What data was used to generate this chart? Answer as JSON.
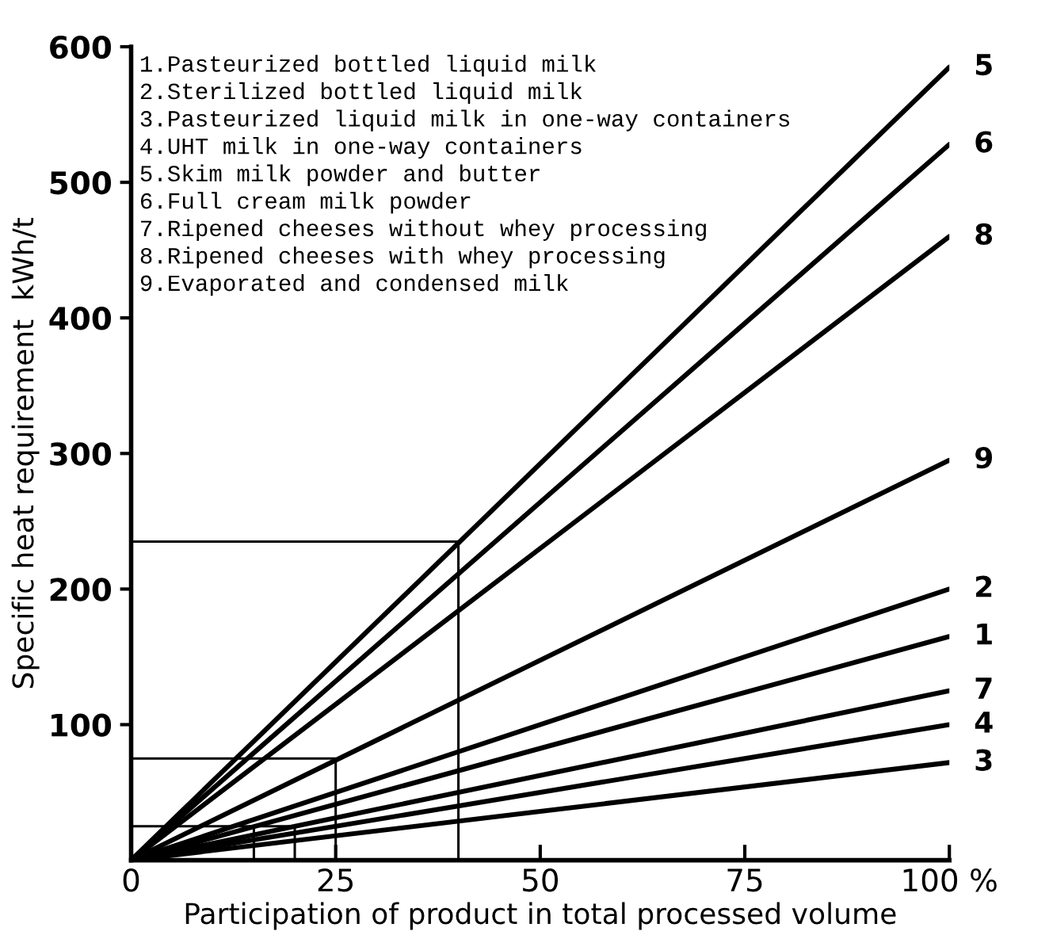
{
  "chart_data": {
    "type": "line",
    "xlabel": "Participation of product in total processed volume",
    "ylabel": "Specific heat requirement  kWh/t",
    "xlim": [
      0,
      100
    ],
    "ylim": [
      0,
      600
    ],
    "xticks": [
      0,
      25,
      50,
      75,
      {
        "value": 100,
        "label": "100 %"
      }
    ],
    "yticks": [
      100,
      200,
      300,
      400,
      500,
      600
    ],
    "grid": false,
    "legend": false,
    "marker": "none",
    "line_style": "solid",
    "annotations": [
      "1.Pasteurized bottled liquid milk\n2.Sterilized bottled liquid milk\n3.Pasteurized liquid milk in one-way containers\n4.UHT milk in one-way containers\n5.Skim milk powder and butter\n6.Full cream milk powder\n7.Ripened cheeses without whey processing\n8.Ripened cheeses with whey processing\n9.Evaporated and condensed milk"
    ],
    "x": [
      0,
      100
    ],
    "series": [
      {
        "name": "5",
        "color": "#000000",
        "values": [
          0,
          585
        ]
      },
      {
        "name": "6",
        "color": "#000000",
        "values": [
          0,
          528
        ]
      },
      {
        "name": "8",
        "color": "#000000",
        "values": [
          0,
          460
        ]
      },
      {
        "name": "9",
        "color": "#000000",
        "values": [
          0,
          295
        ]
      },
      {
        "name": "2",
        "color": "#000000",
        "values": [
          0,
          200
        ]
      },
      {
        "name": "1",
        "color": "#000000",
        "values": [
          0,
          165
        ]
      },
      {
        "name": "7",
        "color": "#000000",
        "values": [
          0,
          125
        ]
      },
      {
        "name": "4",
        "color": "#000000",
        "values": [
          0,
          100
        ]
      },
      {
        "name": "3",
        "color": "#000000",
        "values": [
          0,
          72
        ]
      },
      {
        "color": "#000000",
        "x": [
          0,
          40,
          40
        ],
        "values": [
          235,
          235,
          0
        ]
      },
      {
        "color": "#000000",
        "x": [
          0,
          25,
          25
        ],
        "values": [
          75,
          75,
          0
        ]
      },
      {
        "color": "#000000",
        "x": [
          0,
          20,
          20
        ],
        "values": [
          25,
          25,
          0
        ]
      },
      {
        "color": "#000000",
        "x": [
          15,
          15
        ],
        "values": [
          25,
          0
        ]
      }
    ]
  }
}
